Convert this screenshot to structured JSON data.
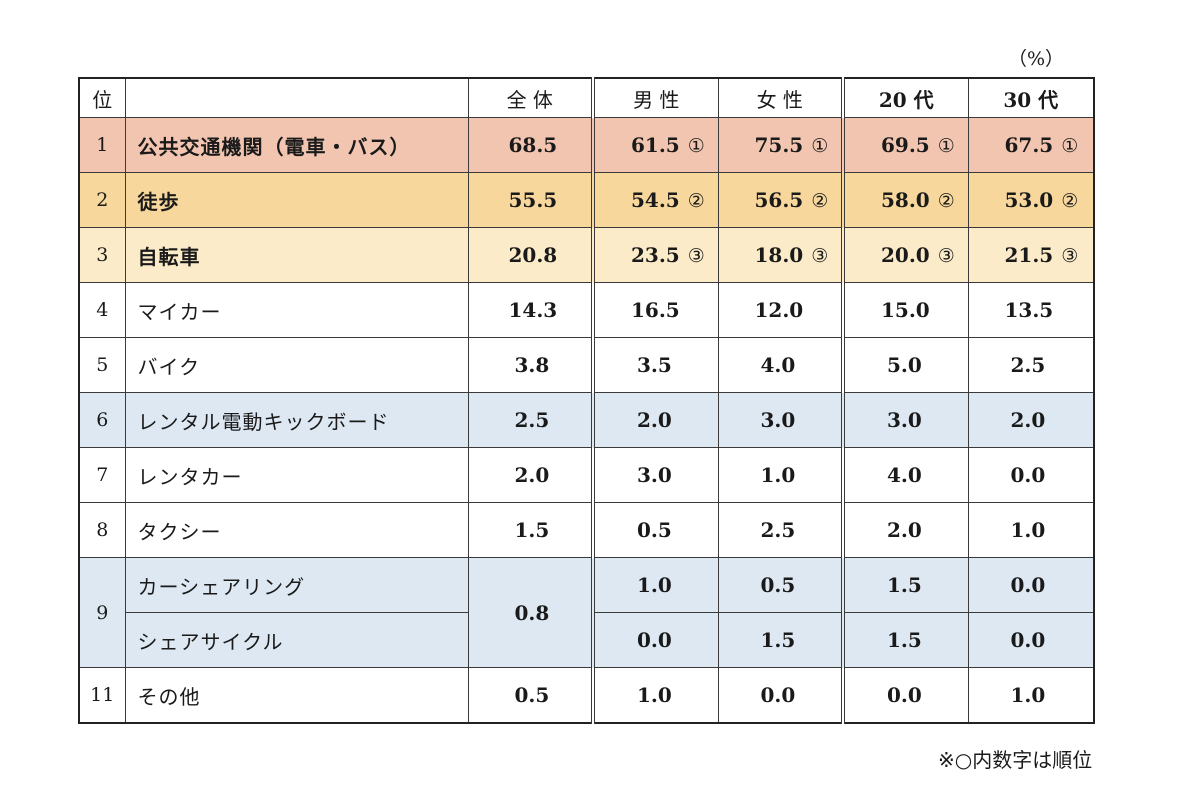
{
  "unit": "（%）",
  "headers": {
    "rank": "位",
    "item": "",
    "all": "全 体",
    "male": "男 性",
    "female": "女 性",
    "age20": "20 代",
    "age30": "30 代"
  },
  "rows": [
    {
      "rank": "1",
      "name": "公共交通機関（電車・バス）",
      "all": "68.5",
      "male": "61.5",
      "male_rank": "①",
      "female": "75.5",
      "female_rank": "①",
      "age20": "69.5",
      "age20_rank": "①",
      "age30": "67.5",
      "age30_rank": "①",
      "highlight": "#f2c5b0"
    },
    {
      "rank": "2",
      "name": "徒歩",
      "all": "55.5",
      "male": "54.5",
      "male_rank": "②",
      "female": "56.5",
      "female_rank": "②",
      "age20": "58.0",
      "age20_rank": "②",
      "age30": "53.0",
      "age30_rank": "②",
      "highlight": "#f7d79c"
    },
    {
      "rank": "3",
      "name": "自転車",
      "all": "20.8",
      "male": "23.5",
      "male_rank": "③",
      "female": "18.0",
      "female_rank": "③",
      "age20": "20.0",
      "age20_rank": "③",
      "age30": "21.5",
      "age30_rank": "③",
      "highlight": "#fbebc8"
    },
    {
      "rank": "4",
      "name": "マイカー",
      "all": "14.3",
      "male": "16.5",
      "female": "12.0",
      "age20": "15.0",
      "age30": "13.5"
    },
    {
      "rank": "5",
      "name": "バイク",
      "all": "3.8",
      "male": "3.5",
      "female": "4.0",
      "age20": "5.0",
      "age30": "2.5"
    },
    {
      "rank": "6",
      "name": "レンタル電動キックボード",
      "all": "2.5",
      "male": "2.0",
      "female": "3.0",
      "age20": "3.0",
      "age30": "2.0",
      "highlight": "#dde8f3"
    },
    {
      "rank": "7",
      "name": "レンタカー",
      "all": "2.0",
      "male": "3.0",
      "female": "1.0",
      "age20": "4.0",
      "age30": "0.0"
    },
    {
      "rank": "8",
      "name": "タクシー",
      "all": "1.5",
      "male": "0.5",
      "female": "2.5",
      "age20": "2.0",
      "age30": "1.0"
    },
    {
      "rank": "9",
      "name": "カーシェアリング",
      "all": "0.8",
      "male": "1.0",
      "female": "0.5",
      "age20": "1.5",
      "age30": "0.0",
      "highlight": "#dde8f3"
    },
    {
      "rank": "",
      "name": "シェアサイクル",
      "all": "",
      "male": "0.0",
      "female": "1.5",
      "age20": "1.5",
      "age30": "0.0",
      "highlight": "#dde8f3"
    },
    {
      "rank": "11",
      "name": "その他",
      "all": "0.5",
      "male": "1.0",
      "female": "0.0",
      "age20": "0.0",
      "age30": "1.0"
    }
  ],
  "note": "※○内数字は順位"
}
